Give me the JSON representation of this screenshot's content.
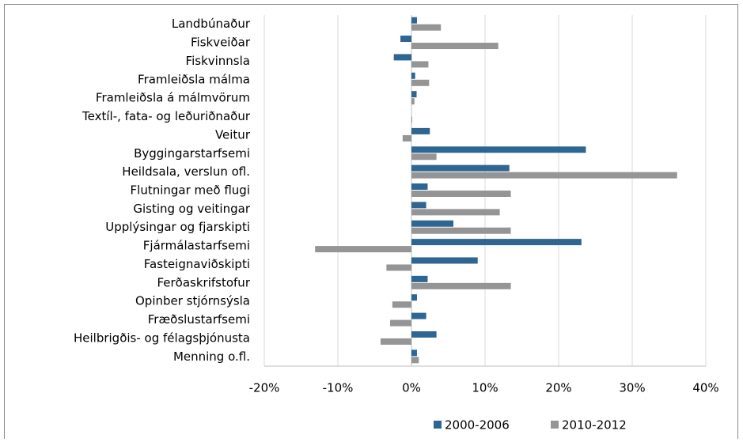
{
  "chart_data": {
    "type": "barh",
    "categories": [
      "Landbúnaður",
      "Fiskveiðar",
      "Fiskvinnsla",
      "Framleiðsla málma",
      "Framleiðsla á málmvörum",
      "Textíl-, fata- og leðuriðnaður",
      "Veitur",
      "Byggingarstarfsemi",
      "Heildsala, verslun ofl.",
      "Flutningar með flugi",
      "Gisting og veitingar",
      "Upplýsingar og fjarskipti",
      "Fjármálastarfsemi",
      "Fasteignaviðskipti",
      "Ferðaskrifstofur",
      "Opinber stjórnsýsla",
      "Fræðslustarfsemi",
      "Heilbrigðis- og félagsþjónusta",
      "Menning o.fl."
    ],
    "series": [
      {
        "name": "2000-2006",
        "color": "#2e6591",
        "values": [
          0.75,
          -1.5,
          -2.4,
          0.5,
          0.7,
          0,
          2.5,
          23.7,
          13.3,
          2.2,
          2.0,
          5.7,
          23.1,
          9.0,
          2.2,
          0.75,
          2.0,
          3.4,
          0.75
        ]
      },
      {
        "name": "2010-2012",
        "color": "#959595",
        "values": [
          4.0,
          11.8,
          2.3,
          2.4,
          0.4,
          0.1,
          -1.2,
          3.4,
          36.1,
          13.5,
          12.0,
          13.5,
          -13.1,
          -3.4,
          13.5,
          -2.6,
          -2.9,
          -4.2,
          1.0
        ]
      }
    ],
    "xlim": [
      -20,
      40
    ],
    "xticks": [
      {
        "value": -20,
        "label": "-20%"
      },
      {
        "value": -10,
        "label": "-10%"
      },
      {
        "value": 0,
        "label": "0%"
      },
      {
        "value": 10,
        "label": "10%"
      },
      {
        "value": 20,
        "label": "20%"
      },
      {
        "value": 30,
        "label": "30%"
      },
      {
        "value": 40,
        "label": "40%"
      }
    ],
    "grid": true,
    "legend": "bottom"
  }
}
